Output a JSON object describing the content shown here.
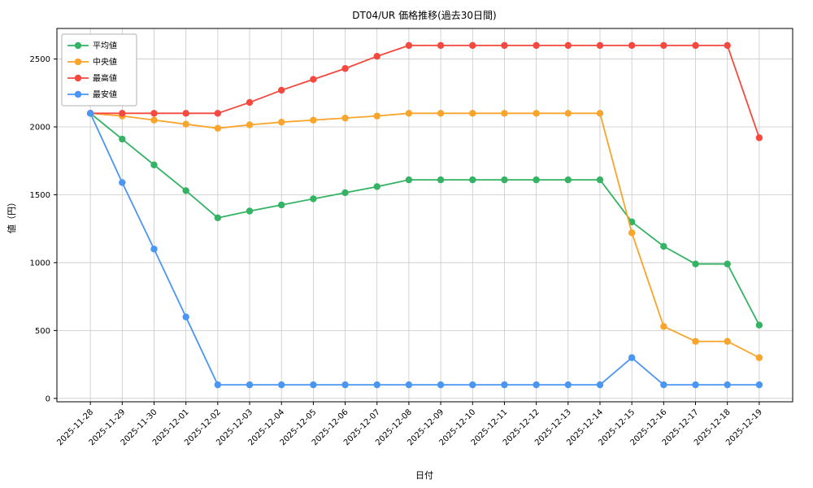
{
  "chart_data": {
    "type": "line",
    "title": "DT04/UR 価格推移(過去30日間)",
    "xlabel": "日付",
    "ylabel": "値（円）",
    "grid": true,
    "legend_position": "upper left",
    "ylim": [
      -25,
      2725
    ],
    "yticks": [
      0,
      500,
      1000,
      1500,
      2000,
      2500
    ],
    "categories": [
      "2025-11-28",
      "2025-11-29",
      "2025-11-30",
      "2025-12-01",
      "2025-12-02",
      "2025-12-03",
      "2025-12-04",
      "2025-12-05",
      "2025-12-06",
      "2025-12-07",
      "2025-12-08",
      "2025-12-09",
      "2025-12-10",
      "2025-12-11",
      "2025-12-12",
      "2025-12-13",
      "2025-12-14",
      "2025-12-15",
      "2025-12-16",
      "2025-12-17",
      "2025-12-18",
      "2025-12-19"
    ],
    "series": [
      {
        "name": "平均値",
        "key": "average",
        "color": "#34b364",
        "values": [
          2100,
          1910,
          1720,
          1530,
          1330,
          1380,
          1425,
          1470,
          1515,
          1560,
          1610,
          1610,
          1610,
          1610,
          1610,
          1610,
          1610,
          1300,
          1120,
          990,
          990,
          540
        ]
      },
      {
        "name": "中央値",
        "key": "median",
        "color": "#f9a42a",
        "values": [
          2100,
          2080,
          2050,
          2020,
          1990,
          2015,
          2035,
          2050,
          2065,
          2080,
          2100,
          2100,
          2100,
          2100,
          2100,
          2100,
          2100,
          1220,
          530,
          420,
          420,
          300
        ]
      },
      {
        "name": "最高値",
        "key": "max",
        "color": "#f4493f",
        "values": [
          2100,
          2100,
          2100,
          2100,
          2100,
          2180,
          2270,
          2350,
          2430,
          2520,
          2600,
          2600,
          2600,
          2600,
          2600,
          2600,
          2600,
          2600,
          2600,
          2600,
          2600,
          1920
        ]
      },
      {
        "name": "最安値",
        "key": "min",
        "color": "#4b96f3",
        "values": [
          2100,
          1590,
          1100,
          600,
          100,
          100,
          100,
          100,
          100,
          100,
          100,
          100,
          100,
          100,
          100,
          100,
          100,
          300,
          100,
          100,
          100,
          100
        ]
      }
    ]
  }
}
